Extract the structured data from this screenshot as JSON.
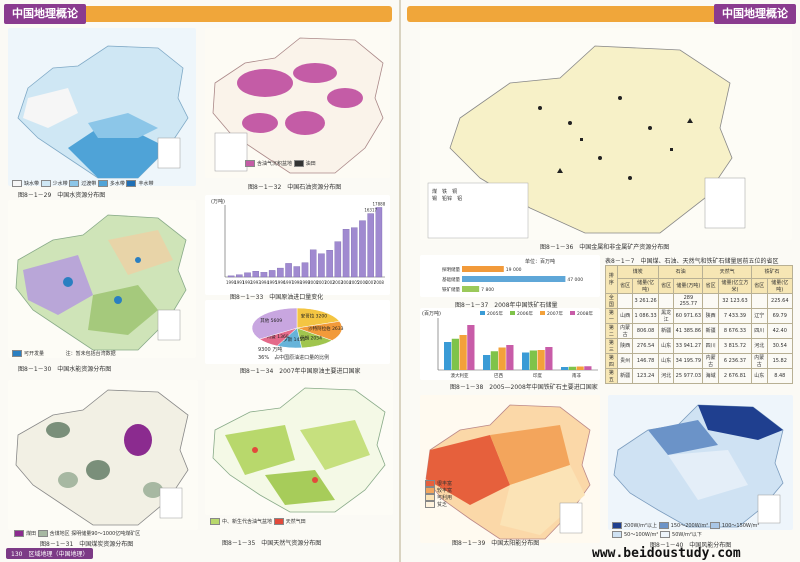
{
  "header": {
    "left_title": "中国地理概论",
    "right_title": "中国地理概论"
  },
  "figures": {
    "water": {
      "caption": "图8－1－29　中国水资源分布图",
      "legend": [
        "缺水带",
        "少水带",
        "过渡带",
        "多水带",
        "丰水带"
      ]
    },
    "oil": {
      "caption": "图8－1－32　中国石油资源分布图",
      "legend": [
        "含油气沉积盆地",
        "油田"
      ]
    },
    "imports": {
      "caption": "图8－1－33　中国原油进口量变化",
      "unit": "(万吨)",
      "x": [
        "1990",
        "1991",
        "1992",
        "1993",
        "1994",
        "1995",
        "1996",
        "1997",
        "1998",
        "1999",
        "2000",
        "2001",
        "2002",
        "2003",
        "2004",
        "2005",
        "2006",
        "2007",
        "2008"
      ],
      "values": [
        300,
        600,
        1100,
        1500,
        1200,
        1700,
        2300,
        3500,
        2700,
        3700,
        7000,
        6000,
        6900,
        9100,
        12300,
        12700,
        14500,
        16317,
        17888
      ],
      "labels": [
        "16317",
        "17888"
      ],
      "ylim": [
        0,
        18000
      ]
    },
    "water_div": {
      "caption": "图8－1－30　中国水能资源分布图",
      "legend_note": "可开发量",
      "legend_extra": "注：暂未包括台湾数据"
    },
    "pie": {
      "caption": "图8－1－34　2007年中国原油主要进口国家",
      "slices": [
        {
          "name": "安哥拉",
          "value": 3200
        },
        {
          "name": "沙特阿拉伯",
          "value": 2633
        },
        {
          "name": "伊朗",
          "value": 2054
        },
        {
          "name": "俄罗斯",
          "value": 1453
        },
        {
          "name": "阿曼",
          "value": 1368
        },
        {
          "name": "其他",
          "value": 5609
        }
      ],
      "note_total": "9300 万吨",
      "note_pct": "36%　占中国原油进口量的比例"
    },
    "coal": {
      "caption": "图8－1－31　中国煤炭资源分布图",
      "legend": [
        "煤田",
        "含煤地区",
        "探明储量90～1000亿吨煤矿区",
        "探明储量500亿吨以上煤矿区",
        "探明储量100～500亿吨煤矿区"
      ]
    },
    "gas": {
      "caption": "图8－1－35　中国天然气资源分布图",
      "legend": [
        "中、新生代含油气盆地",
        "天然气田",
        "累计探明储量1000亿立方米以上",
        "累计探明储量1000亿立方米以下"
      ]
    },
    "metal": {
      "caption": "图8－1－36　中国金属和非金属矿产资源分布图",
      "legend": [
        "煤",
        "铁",
        "铜",
        "锡",
        "铅锌",
        "铝",
        "镍",
        "钨",
        "钼",
        "锑",
        "汞",
        "金",
        "稀土",
        "盐",
        "磷",
        "硫",
        "石墨",
        "钾盐"
      ]
    },
    "iron": {
      "caption": "图8－1－37　2008年中国铁矿石储量",
      "unit": "单位：百万吨",
      "categories": [
        "探明储量",
        "基础储量",
        "铁矿储量"
      ],
      "values": [
        19000,
        47000,
        7800
      ],
      "labels": [
        "19 000",
        "47 000",
        "7 800"
      ]
    },
    "iron_import": {
      "caption": "图8－1－38　2005—2008年中国铁矿石主要进口国家",
      "unit": "(百万吨)",
      "categories": [
        "澳大利亚",
        "巴西",
        "印度",
        "南非"
      ],
      "series": [
        {
          "name": "2005年",
          "values": [
            112,
            60,
            70,
            12
          ]
        },
        {
          "name": "2006年",
          "values": [
            125,
            75,
            78,
            13
          ]
        },
        {
          "name": "2007年",
          "values": [
            140,
            90,
            80,
            14
          ]
        },
        {
          "name": "2008年",
          "values": [
            180,
            100,
            92,
            15
          ]
        }
      ],
      "ylim": [
        0,
        200
      ]
    },
    "solar": {
      "caption": "图8－1－39　中国太阳能分布图",
      "legend": [
        "很丰富",
        "较丰富",
        "可利用",
        "贫乏"
      ]
    },
    "wind": {
      "caption": "图8－1－40　中国风能分布图",
      "legend": [
        "200W/m²以上",
        "150～200W/m²",
        "100～150W/m²",
        "50～100W/m²",
        "50W/m²以下"
      ]
    }
  },
  "table": {
    "caption": "表8－1－7　中国煤、石油、天然气和铁矿石储量居前五位的省区",
    "headers": [
      "排序",
      "煤炭",
      "",
      "石油",
      "",
      "天然气",
      "",
      "铁矿石",
      ""
    ],
    "subheaders": [
      "省区",
      "储量(亿吨)",
      "省区",
      "储量(万吨)",
      "省区",
      "储量(亿立方米)",
      "省区",
      "储量(亿吨)"
    ],
    "rows": [
      [
        "全国",
        "",
        "3 261.26",
        "",
        "289 255.77",
        "",
        "32 123.63",
        "",
        "225.64"
      ],
      [
        "第一",
        "山西",
        "1 086.33",
        "黑龙江",
        "60 971.63",
        "陕西",
        "7 433.39",
        "辽宁",
        "69.79"
      ],
      [
        "第二",
        "内蒙古",
        "806.08",
        "新疆",
        "41 385.86",
        "新疆",
        "8 676.33",
        "四川",
        "42.40"
      ],
      [
        "第三",
        "陕西",
        "276.54",
        "山东",
        "33 941.27",
        "四川",
        "3 815.72",
        "河北",
        "30.54"
      ],
      [
        "第四",
        "贵州",
        "146.78",
        "山东",
        "34 195.79",
        "内蒙古",
        "6 236.37",
        "内蒙古",
        "15.82"
      ],
      [
        "第五",
        "新疆",
        "123.24",
        "河北",
        "25 977.03",
        "海域",
        "2 676.81",
        "山东",
        "8.48"
      ]
    ]
  },
  "footer": {
    "left": "130　区域地理（中国地理）",
    "right": "www.beidoustudy.com"
  }
}
